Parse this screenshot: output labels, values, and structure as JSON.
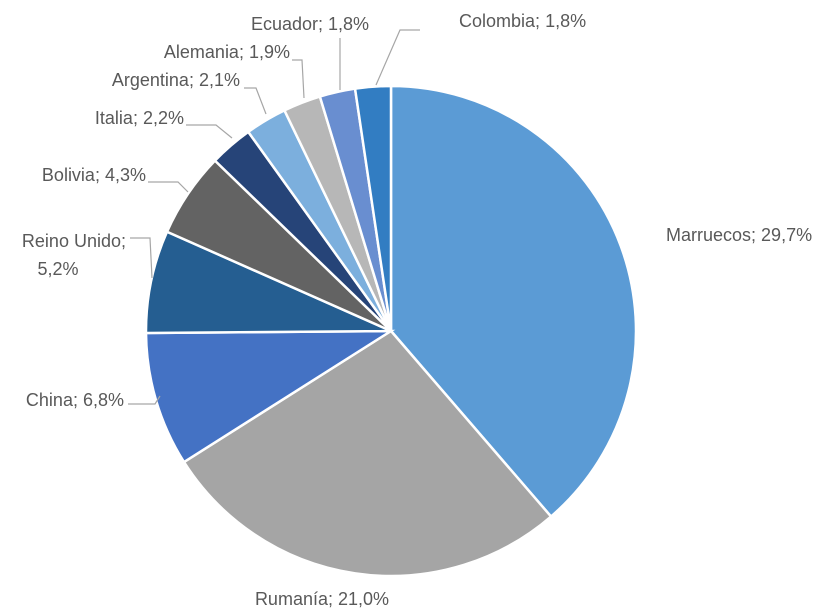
{
  "chart_data": {
    "type": "pie",
    "categories": [
      "Marruecos",
      "Rumanía",
      "China",
      "Reino Unido",
      "Bolivia",
      "Italia",
      "Argentina",
      "Alemania",
      "Ecuador",
      "Colombia"
    ],
    "values": [
      29.7,
      21.0,
      6.8,
      5.2,
      4.3,
      2.2,
      2.1,
      1.9,
      1.8,
      1.8
    ],
    "value_labels": [
      "29,7%",
      "21,0%",
      "6,8%",
      "5,2%",
      "4,3%",
      "2,2%",
      "2,1%",
      "1,9%",
      "1,8%",
      "1,8%"
    ],
    "label_separator": "; ",
    "colors": [
      "#5b9bd5",
      "#a5a5a5",
      "#4472c4",
      "#255e91",
      "#636363",
      "#264478",
      "#7cafdd",
      "#b7b7b7",
      "#698ed0",
      "#327dc2"
    ]
  }
}
